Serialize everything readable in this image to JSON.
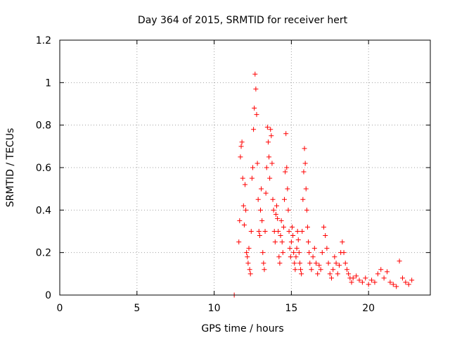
{
  "chart_data": {
    "type": "scatter",
    "title": "Day 364 of 2015, SRMTID for receiver hert",
    "xlabel": "GPS time / hours",
    "ylabel": "SRMTID / TECUs",
    "xlim": [
      0,
      24
    ],
    "ylim": [
      0,
      1.2
    ],
    "x_ticks": [
      0,
      5,
      10,
      15,
      20
    ],
    "y_ticks": [
      0,
      0.2,
      0.4,
      0.6,
      0.8,
      1,
      1.2
    ],
    "x_tick_labels": [
      "0",
      "5",
      "10",
      "15",
      "20"
    ],
    "y_tick_labels": [
      "0",
      "0.2",
      "0.4",
      "0.6",
      "0.8",
      "1",
      "1.2"
    ],
    "grid": true,
    "marker": "+",
    "series": [
      {
        "name": "SRMTID",
        "color": "#ff0000",
        "points": [
          [
            11.3,
            0.0
          ],
          [
            11.6,
            0.25
          ],
          [
            11.65,
            0.35
          ],
          [
            11.7,
            0.65
          ],
          [
            11.75,
            0.7
          ],
          [
            11.8,
            0.72
          ],
          [
            11.85,
            0.55
          ],
          [
            11.9,
            0.42
          ],
          [
            11.95,
            0.33
          ],
          [
            12.0,
            0.52
          ],
          [
            12.05,
            0.4
          ],
          [
            12.1,
            0.2
          ],
          [
            12.15,
            0.18
          ],
          [
            12.2,
            0.15
          ],
          [
            12.25,
            0.22
          ],
          [
            12.3,
            0.12
          ],
          [
            12.35,
            0.1
          ],
          [
            12.4,
            0.3
          ],
          [
            12.45,
            0.55
          ],
          [
            12.5,
            0.6
          ],
          [
            12.55,
            0.78
          ],
          [
            12.6,
            0.88
          ],
          [
            12.65,
            1.04
          ],
          [
            12.7,
            0.97
          ],
          [
            12.75,
            0.85
          ],
          [
            12.8,
            0.62
          ],
          [
            12.85,
            0.45
          ],
          [
            12.9,
            0.3
          ],
          [
            12.95,
            0.28
          ],
          [
            13.0,
            0.4
          ],
          [
            13.05,
            0.5
          ],
          [
            13.1,
            0.35
          ],
          [
            13.15,
            0.2
          ],
          [
            13.2,
            0.15
          ],
          [
            13.25,
            0.12
          ],
          [
            13.3,
            0.3
          ],
          [
            13.35,
            0.48
          ],
          [
            13.4,
            0.6
          ],
          [
            13.45,
            0.79
          ],
          [
            13.5,
            0.72
          ],
          [
            13.55,
            0.65
          ],
          [
            13.6,
            0.55
          ],
          [
            13.65,
            0.78
          ],
          [
            13.7,
            0.75
          ],
          [
            13.75,
            0.62
          ],
          [
            13.8,
            0.45
          ],
          [
            13.85,
            0.4
          ],
          [
            13.9,
            0.3
          ],
          [
            13.95,
            0.25
          ],
          [
            14.0,
            0.38
          ],
          [
            14.05,
            0.42
          ],
          [
            14.1,
            0.36
          ],
          [
            14.15,
            0.3
          ],
          [
            14.2,
            0.18
          ],
          [
            14.25,
            0.15
          ],
          [
            14.3,
            0.28
          ],
          [
            14.35,
            0.35
          ],
          [
            14.4,
            0.25
          ],
          [
            14.45,
            0.2
          ],
          [
            14.5,
            0.32
          ],
          [
            14.55,
            0.45
          ],
          [
            14.6,
            0.58
          ],
          [
            14.65,
            0.76
          ],
          [
            14.7,
            0.6
          ],
          [
            14.75,
            0.5
          ],
          [
            14.8,
            0.4
          ],
          [
            14.85,
            0.3
          ],
          [
            14.9,
            0.22
          ],
          [
            14.95,
            0.18
          ],
          [
            15.0,
            0.25
          ],
          [
            15.05,
            0.32
          ],
          [
            15.1,
            0.28
          ],
          [
            15.15,
            0.2
          ],
          [
            15.2,
            0.15
          ],
          [
            15.25,
            0.12
          ],
          [
            15.3,
            0.18
          ],
          [
            15.35,
            0.22
          ],
          [
            15.4,
            0.3
          ],
          [
            15.45,
            0.26
          ],
          [
            15.5,
            0.2
          ],
          [
            15.55,
            0.15
          ],
          [
            15.6,
            0.12
          ],
          [
            15.65,
            0.1
          ],
          [
            15.7,
            0.3
          ],
          [
            15.75,
            0.45
          ],
          [
            15.8,
            0.58
          ],
          [
            15.85,
            0.69
          ],
          [
            15.9,
            0.62
          ],
          [
            15.95,
            0.5
          ],
          [
            16.0,
            0.4
          ],
          [
            16.05,
            0.32
          ],
          [
            16.1,
            0.25
          ],
          [
            16.15,
            0.2
          ],
          [
            16.2,
            0.15
          ],
          [
            16.3,
            0.12
          ],
          [
            16.4,
            0.18
          ],
          [
            16.5,
            0.22
          ],
          [
            16.6,
            0.15
          ],
          [
            16.7,
            0.1
          ],
          [
            16.8,
            0.14
          ],
          [
            16.9,
            0.12
          ],
          [
            17.0,
            0.2
          ],
          [
            17.1,
            0.32
          ],
          [
            17.2,
            0.28
          ],
          [
            17.3,
            0.22
          ],
          [
            17.4,
            0.15
          ],
          [
            17.5,
            0.1
          ],
          [
            17.6,
            0.08
          ],
          [
            17.7,
            0.12
          ],
          [
            17.8,
            0.18
          ],
          [
            17.9,
            0.15
          ],
          [
            18.0,
            0.1
          ],
          [
            18.1,
            0.14
          ],
          [
            18.2,
            0.2
          ],
          [
            18.3,
            0.25
          ],
          [
            18.4,
            0.2
          ],
          [
            18.5,
            0.15
          ],
          [
            18.6,
            0.12
          ],
          [
            18.7,
            0.1
          ],
          [
            18.8,
            0.08
          ],
          [
            18.9,
            0.06
          ],
          [
            19.0,
            0.08
          ],
          [
            19.2,
            0.09
          ],
          [
            19.4,
            0.07
          ],
          [
            19.6,
            0.06
          ],
          [
            19.8,
            0.08
          ],
          [
            20.0,
            0.05
          ],
          [
            20.2,
            0.07
          ],
          [
            20.4,
            0.06
          ],
          [
            20.6,
            0.1
          ],
          [
            20.8,
            0.12
          ],
          [
            21.0,
            0.08
          ],
          [
            21.2,
            0.11
          ],
          [
            21.4,
            0.06
          ],
          [
            21.6,
            0.05
          ],
          [
            21.8,
            0.04
          ],
          [
            22.0,
            0.16
          ],
          [
            22.2,
            0.08
          ],
          [
            22.4,
            0.06
          ],
          [
            22.6,
            0.05
          ],
          [
            22.8,
            0.07
          ]
        ]
      }
    ]
  }
}
